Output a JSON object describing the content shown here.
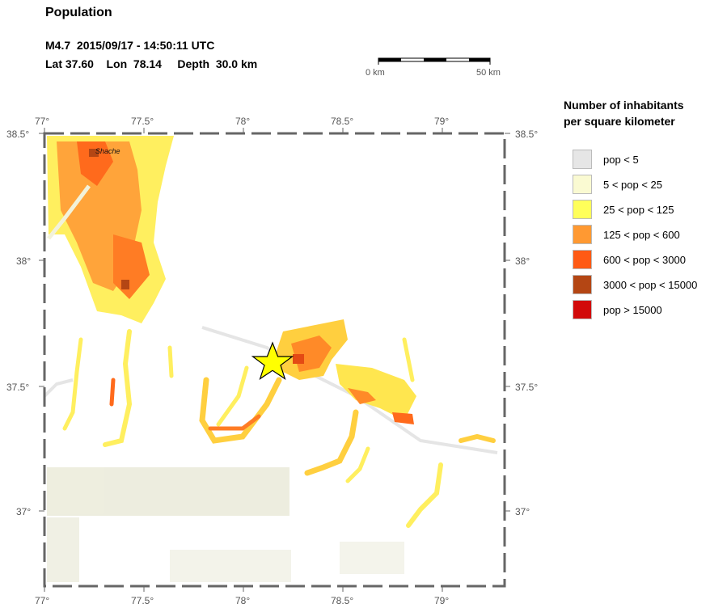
{
  "header": {
    "title": "Population",
    "event": "M4.7  2015/09/17 - 14:50:11 UTC",
    "location": "Lat 37.60    Lon  78.14     Depth  30.0 km"
  },
  "scale": {
    "start_label": "0 km",
    "end_label": "50 km"
  },
  "map": {
    "x_ticks": [
      "77°",
      "77.5°",
      "78°",
      "78.5°",
      "79°"
    ],
    "y_ticks": [
      "38.5°",
      "38°",
      "37.5°",
      "37°"
    ],
    "city_label": "Shache",
    "epicenter": {
      "lat": 37.6,
      "lon": 78.14,
      "color": "#ffff00"
    }
  },
  "legend": {
    "title_line1": "Number of inhabitants",
    "title_line2": "per square kilometer",
    "items": [
      {
        "label": "pop < 5",
        "color": "#e6e6e6"
      },
      {
        "label": "5 < pop < 25",
        "color": "#fafad2"
      },
      {
        "label": "25 < pop < 125",
        "color": "#ffff5a"
      },
      {
        "label": "125 < pop < 600",
        "color": "#ff9932"
      },
      {
        "label": "600 < pop < 3000",
        "color": "#ff5a14"
      },
      {
        "label": "3000 < pop < 15000",
        "color": "#b44614"
      },
      {
        "label": "pop > 15000",
        "color": "#d20a0a"
      }
    ]
  }
}
